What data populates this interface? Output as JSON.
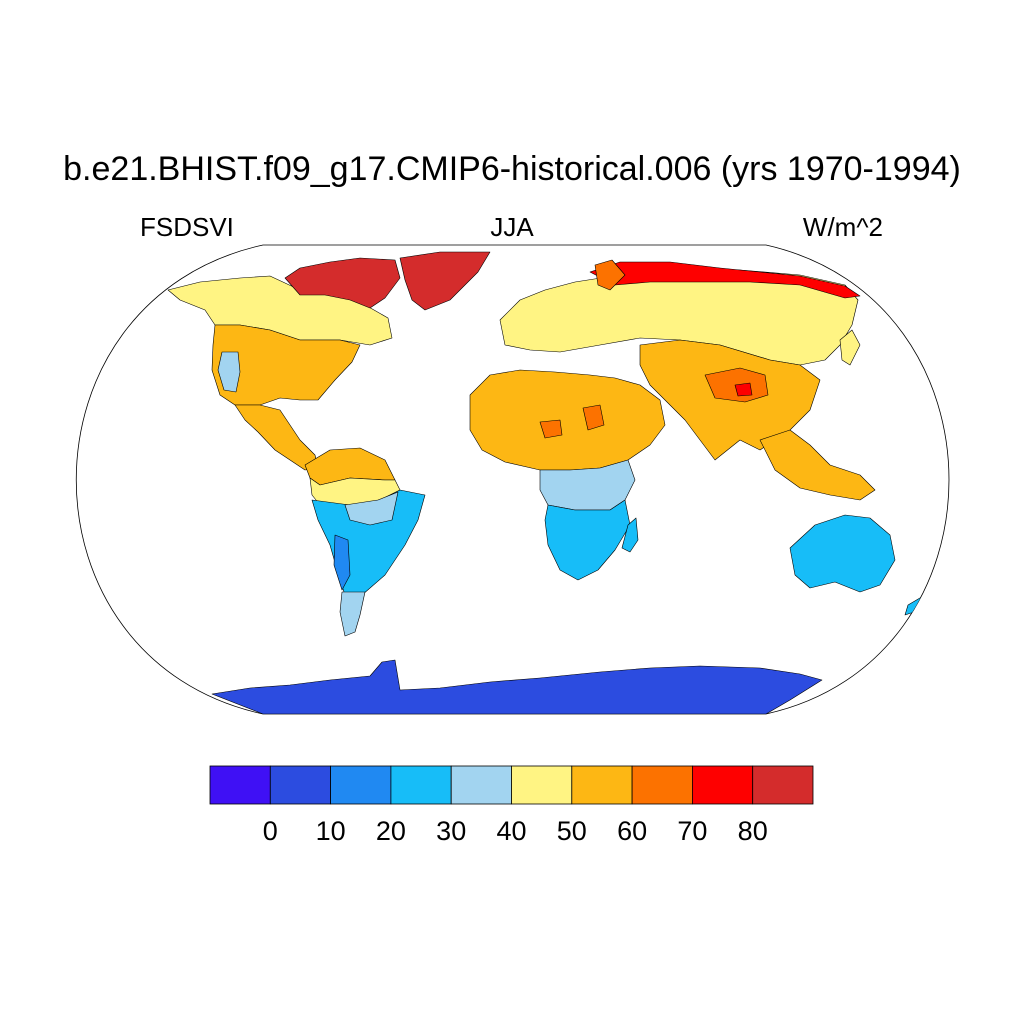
{
  "figure": {
    "title": "b.e21.BHIST.f09_g17.CMIP6-historical.006 (yrs 1970-1994)",
    "left_subtitle": "FSDSVI",
    "center_subtitle": "JJA",
    "right_subtitle": "W/m^2"
  },
  "map": {
    "projection": "Robinson",
    "variable": "FSDSVI",
    "season": "JJA",
    "units": "W/m^2",
    "ocean_masked": true,
    "ocean_color": "#ffffff",
    "land_regions": [
      {
        "name": "Antarctica",
        "class": "0-10"
      },
      {
        "name": "Greenland",
        "class": "80+"
      },
      {
        "name": "Canadian Arctic Archipelago",
        "class": "80+"
      },
      {
        "name": "Northern Canada / Alaska",
        "class": "40-50"
      },
      {
        "name": "USA / southern Canada",
        "class": "50-60"
      },
      {
        "name": "California coast",
        "class": "30-40"
      },
      {
        "name": "Mexico / Central America",
        "class": "50-60"
      },
      {
        "name": "Northern South America",
        "class": "50-60"
      },
      {
        "name": "Amazon belt",
        "class": "40-50"
      },
      {
        "name": "Central South America",
        "class": "20-30"
      },
      {
        "name": "Southern Andes",
        "class": "10-20"
      },
      {
        "name": "Patagonia",
        "class": "20-30"
      },
      {
        "name": "Europe / Northern Asia",
        "class": "40-50"
      },
      {
        "name": "Scandinavia / Arctic Russia",
        "class": "70-80"
      },
      {
        "name": "Sahara / Arabia",
        "class": "50-60"
      },
      {
        "name": "Sahara hot spots",
        "class": "60-70"
      },
      {
        "name": "Central Africa",
        "class": "30-40"
      },
      {
        "name": "Southern Africa",
        "class": "20-30"
      },
      {
        "name": "Madagascar",
        "class": "20-30"
      },
      {
        "name": "Central / South Asia",
        "class": "50-60"
      },
      {
        "name": "Tibetan Plateau",
        "class": "60-70"
      },
      {
        "name": "Southeast Asia / Indonesia",
        "class": "50-60"
      },
      {
        "name": "Australia",
        "class": "20-30"
      },
      {
        "name": "New Zealand",
        "class": "10-20"
      }
    ]
  },
  "colorbar": {
    "colors": [
      "#3f10f5",
      "#2c4ce0",
      "#2089f2",
      "#17bdf8",
      "#a2d4f0",
      "#fff483",
      "#fdb714",
      "#fc7200",
      "#fe0000",
      "#d42c2c"
    ],
    "labels": [
      "0",
      "10",
      "20",
      "30",
      "40",
      "50",
      "60",
      "70",
      "80"
    ]
  }
}
